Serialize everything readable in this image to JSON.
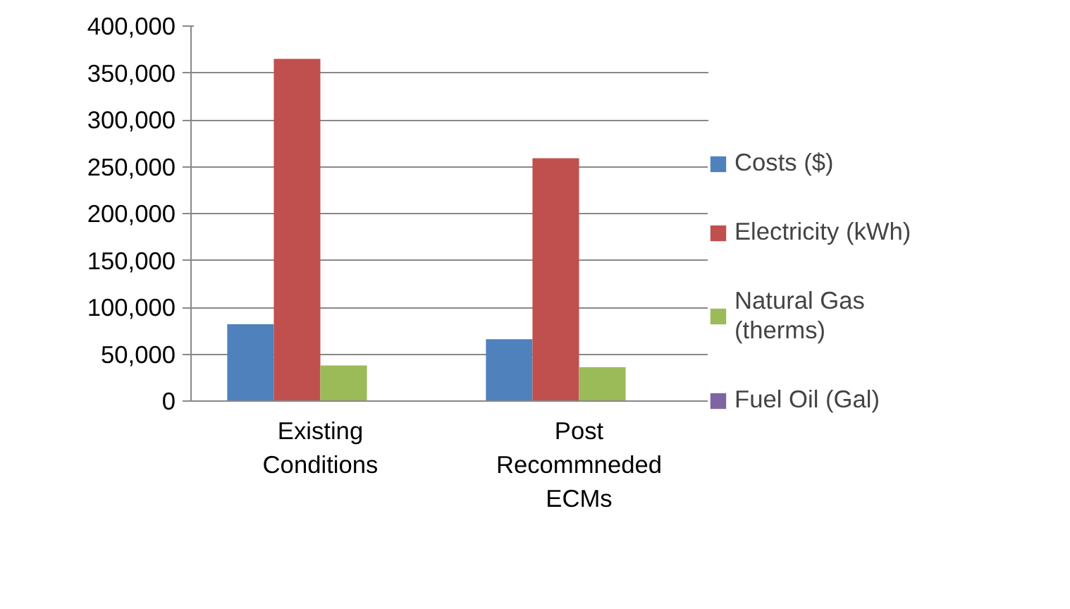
{
  "chart_data": {
    "type": "bar",
    "categories": [
      "Existing\nConditions",
      "Post\nRecommneded\nECMs"
    ],
    "series": [
      {
        "name": "Costs ($)",
        "color": "#4f81bd",
        "values": [
          82000,
          66000
        ]
      },
      {
        "name": "Electricity (kWh)",
        "color": "#c0504d",
        "values": [
          365000,
          259000
        ]
      },
      {
        "name": "Natural Gas\n(therms)",
        "color": "#9bbb59",
        "values": [
          38000,
          36000
        ]
      },
      {
        "name": "Fuel Oil (Gal)",
        "color": "#8064a2",
        "values": [
          0,
          0
        ]
      }
    ],
    "ylim": [
      0,
      400000
    ],
    "yticks": [
      {
        "value": 0,
        "label": "0"
      },
      {
        "value": 50000,
        "label": "50,000"
      },
      {
        "value": 100000,
        "label": "100,000"
      },
      {
        "value": 150000,
        "label": "150,000"
      },
      {
        "value": 200000,
        "label": "200,000"
      },
      {
        "value": 250000,
        "label": "250,000"
      },
      {
        "value": 300000,
        "label": "300,000"
      },
      {
        "value": 350000,
        "label": "350,000"
      },
      {
        "value": 400000,
        "label": "400,000"
      }
    ],
    "grid": "y",
    "legend": "right"
  }
}
